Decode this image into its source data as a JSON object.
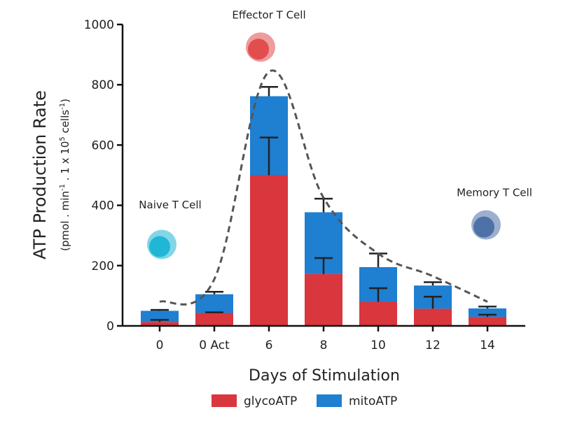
{
  "chart_data": {
    "type": "bar",
    "stacked": true,
    "categories": [
      "0",
      "0 Act",
      "6",
      "8",
      "10",
      "12",
      "14"
    ],
    "series": [
      {
        "name": "glycoATP",
        "color": "#d9363e",
        "values": [
          13,
          43,
          500,
          172,
          80,
          57,
          30
        ],
        "error_upper": [
          20,
          45,
          625,
          225,
          125,
          97,
          37
        ]
      },
      {
        "name": "mitoATP",
        "color": "#1f7fd1",
        "values": [
          37,
          62,
          262,
          205,
          115,
          77,
          28
        ],
        "error_upper": [
          53,
          113,
          793,
          422,
          240,
          145,
          64
        ]
      }
    ],
    "ylim": [
      0,
      1000
    ],
    "yticks": [
      "0",
      "200",
      "400",
      "600",
      "800",
      "1000"
    ],
    "ylabel": "ATP Production Rate",
    "ylabel_units": {
      "p1": "(pmol . min",
      "s1": "-1",
      "p2": " . 1 x 10",
      "s2": "5",
      "p3": " cells",
      "s3": "-1",
      "p4": ")"
    },
    "xlabel": "Days of Stimulation",
    "trend_line": [
      80,
      155,
      843,
      425,
      240,
      165,
      80
    ],
    "annotations": [
      {
        "text": "Naive T Cell",
        "category_index": 0,
        "value": 390,
        "icon": "naive-t-cell-icon",
        "icon_value": 270,
        "color": "#19b5d4"
      },
      {
        "text": "Effector T Cell",
        "category_index": 2,
        "value": 1020,
        "icon": "effector-t-cell-icon",
        "icon_value": 925,
        "color": "#e04a4a"
      },
      {
        "text": "Memory T Cell",
        "category_index": 6,
        "value": 430,
        "icon": "memory-t-cell-icon",
        "icon_value": 335,
        "color": "#4a6fa5"
      }
    ],
    "legend": [
      {
        "label": "glycoATP",
        "color": "#d9363e"
      },
      {
        "label": "mitoATP",
        "color": "#1f7fd1"
      }
    ],
    "legend_position": "bottom-center",
    "grid": false
  }
}
